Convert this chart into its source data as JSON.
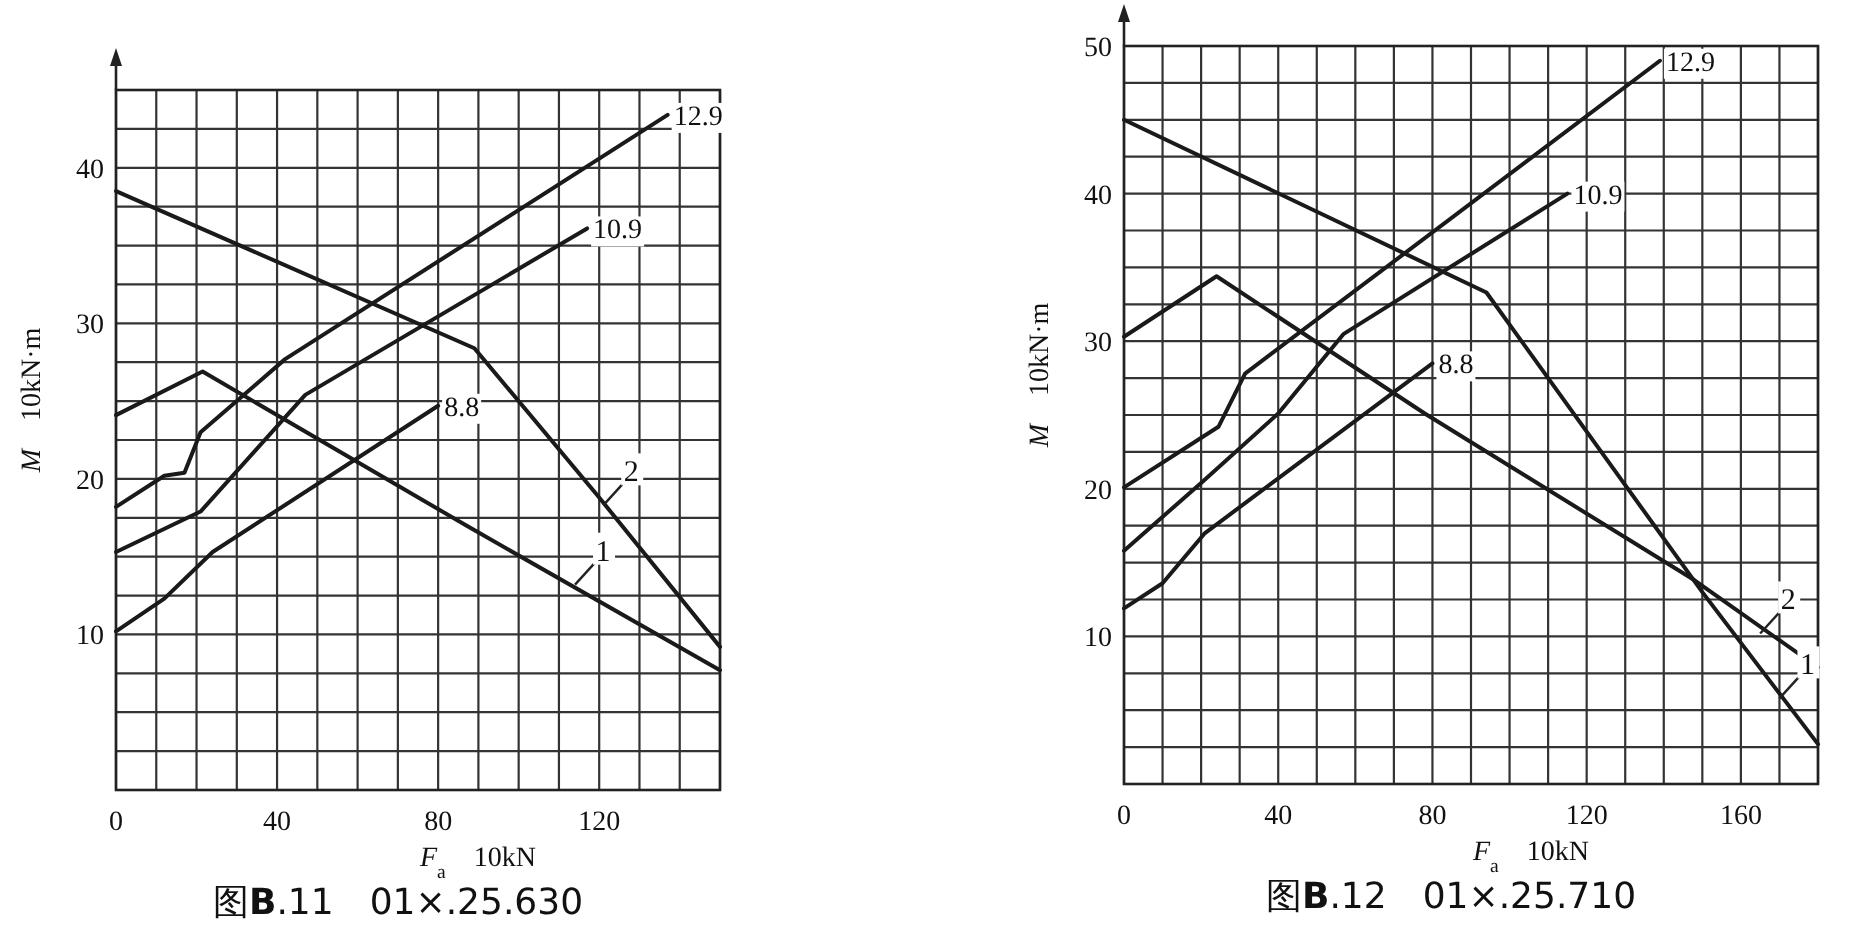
{
  "chart_data": [
    {
      "type": "line",
      "title": "图**B**.11　01×.25.630",
      "xlabel": "*F*$_{a}$　10kN",
      "ylabel": "*M*　10kN·m",
      "grid": true,
      "marker": "none",
      "line_style": "solid",
      "xlim": [
        0,
        150
      ],
      "ylim": [
        0,
        45
      ],
      "xticks": [
        0,
        {
          "value": 10,
          "label": null
        },
        {
          "value": 20,
          "label": null
        },
        {
          "value": 30,
          "label": null
        },
        40,
        {
          "value": 50,
          "label": null
        },
        {
          "value": 60,
          "label": null
        },
        {
          "value": 70,
          "label": null
        },
        80,
        {
          "value": 90,
          "label": null
        },
        {
          "value": 100,
          "label": null
        },
        {
          "value": 110,
          "label": null
        },
        120,
        {
          "value": 130,
          "label": null
        },
        {
          "value": 140,
          "label": null
        },
        {
          "value": 150,
          "label": null
        }
      ],
      "yticks": [
        {
          "value": 0,
          "label": null
        },
        {
          "value": 2.5,
          "label": null
        },
        {
          "value": 5,
          "label": null
        },
        {
          "value": 7.5,
          "label": null
        },
        10,
        {
          "value": 12.5,
          "label": null
        },
        {
          "value": 15,
          "label": null
        },
        {
          "value": 17.5,
          "label": null
        },
        20,
        {
          "value": 22.5,
          "label": null
        },
        {
          "value": 25,
          "label": null
        },
        {
          "value": 27.5,
          "label": null
        },
        30,
        {
          "value": 32.5,
          "label": null
        },
        {
          "value": 35,
          "label": null
        },
        {
          "value": 37.5,
          "label": null
        },
        40,
        {
          "value": 42.5,
          "label": null
        },
        {
          "value": 45,
          "label": null
        }
      ],
      "series": [
        {
          "name": "12.9",
          "color": "#1a1a1a",
          "x": [
            0,
            12,
            17,
            21,
            42,
            137
          ],
          "values": [
            18.2,
            20.2,
            20.4,
            23,
            27.7,
            43.4
          ]
        },
        {
          "name": "10.9",
          "color": "#1a1a1a",
          "x": [
            0,
            21,
            47,
            117
          ],
          "values": [
            15.3,
            17.9,
            25.4,
            36.1
          ]
        },
        {
          "name": "8.8",
          "color": "#1a1a1a",
          "x": [
            0,
            12,
            24,
            80
          ],
          "values": [
            10.2,
            12.3,
            15.3,
            24.7
          ]
        },
        {
          "color": "#1a1a1a",
          "x": [
            0,
            21.5,
            87,
            150
          ],
          "values": [
            24.1,
            26.9,
            17,
            7.7
          ]
        },
        {
          "color": "#1a1a1a",
          "x": [
            0,
            89,
            120,
            150
          ],
          "values": [
            38.5,
            28.4,
            18.8,
            9.2
          ]
        }
      ],
      "annotations": [
        {
          "text": "2",
          "x": 121,
          "y": 18.3
        },
        {
          "text": "1",
          "x": 114,
          "y": 13.2
        }
      ]
    },
    {
      "type": "line",
      "title": "图**B**.12　01×.25.710",
      "xlabel": "*F*$_{a}$　10kN",
      "ylabel": "*M*　10kN·m",
      "grid": true,
      "marker": "none",
      "line_style": "solid",
      "xlim": [
        0,
        180
      ],
      "ylim": [
        0,
        50
      ],
      "xticks": [
        0,
        {
          "value": 10,
          "label": null
        },
        {
          "value": 20,
          "label": null
        },
        {
          "value": 30,
          "label": null
        },
        40,
        {
          "value": 50,
          "label": null
        },
        {
          "value": 60,
          "label": null
        },
        {
          "value": 70,
          "label": null
        },
        80,
        {
          "value": 90,
          "label": null
        },
        {
          "value": 100,
          "label": null
        },
        {
          "value": 110,
          "label": null
        },
        120,
        {
          "value": 130,
          "label": null
        },
        {
          "value": 140,
          "label": null
        },
        {
          "value": 150,
          "label": null
        },
        160,
        {
          "value": 170,
          "label": null
        },
        {
          "value": 180,
          "label": null
        }
      ],
      "yticks": [
        {
          "value": 0,
          "label": null
        },
        {
          "value": 2.5,
          "label": null
        },
        {
          "value": 5,
          "label": null
        },
        {
          "value": 7.5,
          "label": null
        },
        10,
        {
          "value": 12.5,
          "label": null
        },
        {
          "value": 15,
          "label": null
        },
        {
          "value": 17.5,
          "label": null
        },
        20,
        {
          "value": 22.5,
          "label": null
        },
        {
          "value": 25,
          "label": null
        },
        {
          "value": 27.5,
          "label": null
        },
        30,
        {
          "value": 32.5,
          "label": null
        },
        {
          "value": 35,
          "label": null
        },
        {
          "value": 37.5,
          "label": null
        },
        40,
        {
          "value": 42.5,
          "label": null
        },
        {
          "value": 45,
          "label": null
        },
        {
          "value": 47.5,
          "label": null
        },
        50
      ],
      "series": [
        {
          "name": "12.9",
          "color": "#1a1a1a",
          "x": [
            0,
            24.5,
            31.4,
            139
          ],
          "values": [
            20.1,
            24.2,
            27.8,
            49
          ]
        },
        {
          "name": "10.9",
          "color": "#1a1a1a",
          "x": [
            0,
            20,
            40,
            57,
            115
          ],
          "values": [
            15.8,
            20.4,
            25.1,
            30.5,
            40
          ]
        },
        {
          "name": "8.8",
          "color": "#1a1a1a",
          "x": [
            0,
            10,
            21,
            80
          ],
          "values": [
            11.9,
            13.6,
            17,
            28.5
          ]
        },
        {
          "color": "#1a1a1a",
          "x": [
            0,
            24,
            78,
            148,
            180
          ],
          "values": [
            30.3,
            34.4,
            25.1,
            13.8,
            7.9
          ]
        },
        {
          "color": "#1a1a1a",
          "x": [
            0,
            94,
            150,
            180
          ],
          "values": [
            45,
            33.3,
            13,
            2.7
          ]
        }
      ],
      "annotations": [
        {
          "text": "2",
          "x": 165,
          "y": 10.2
        },
        {
          "text": "1",
          "x": 170,
          "y": 5.8
        }
      ]
    }
  ]
}
